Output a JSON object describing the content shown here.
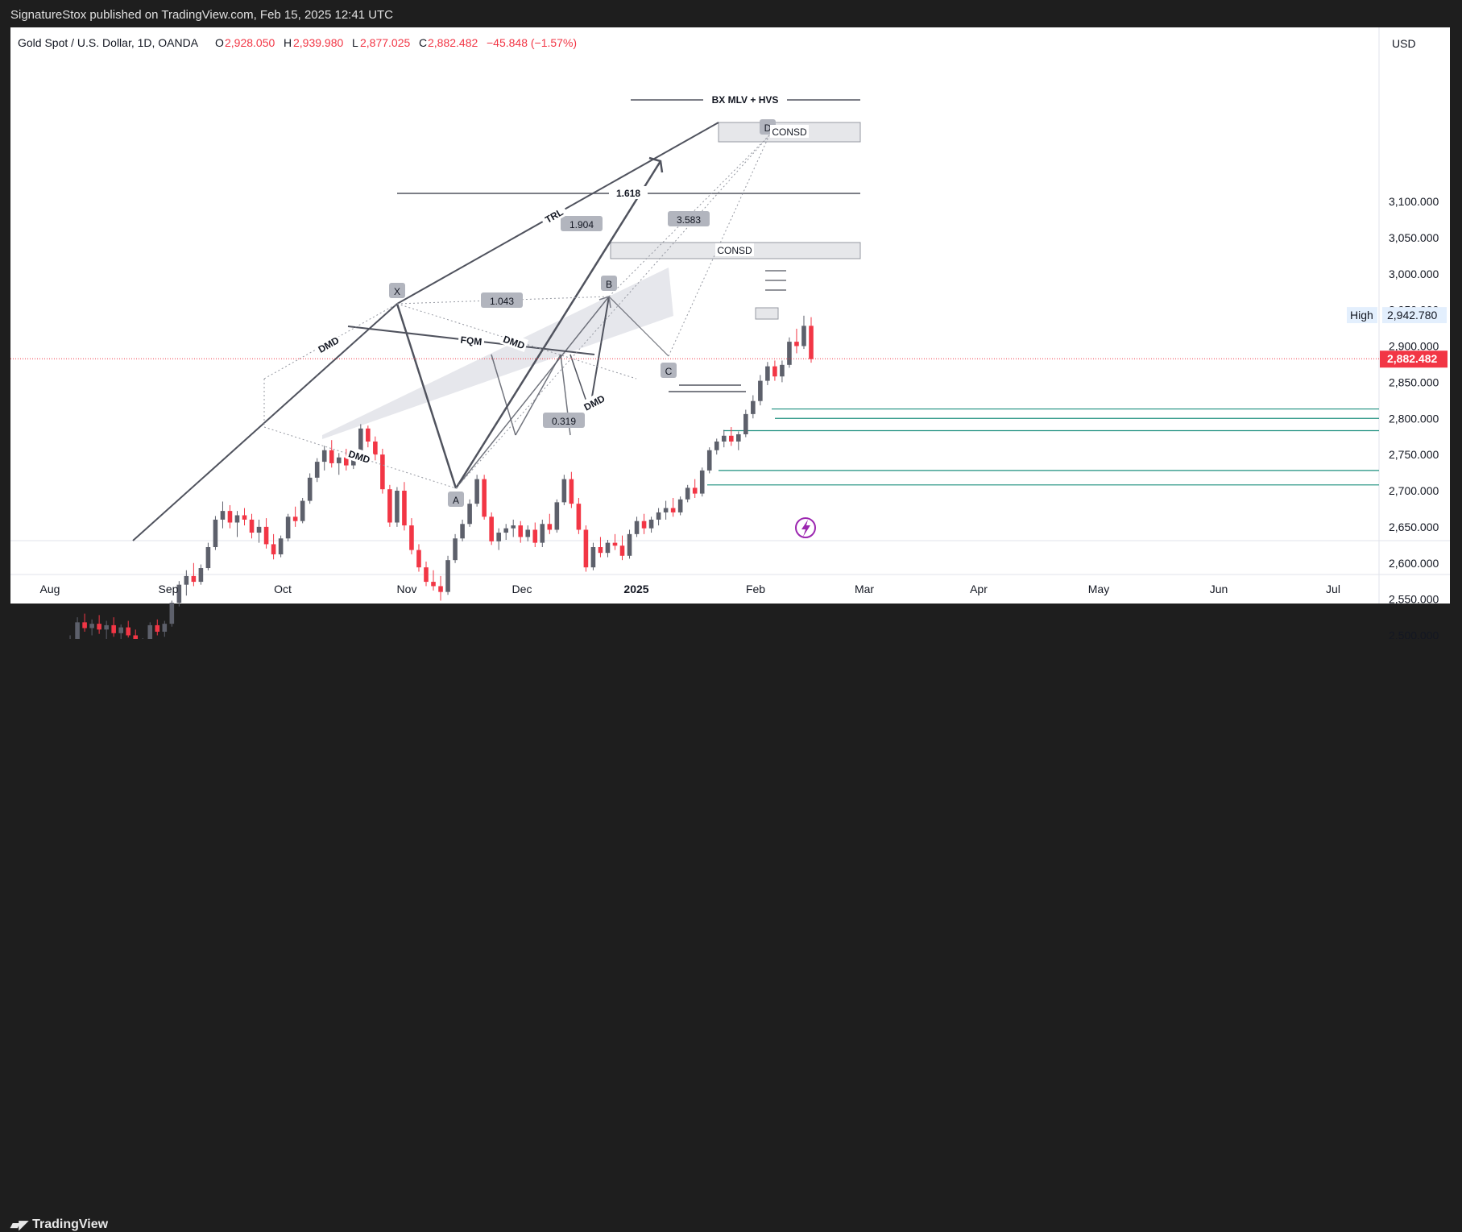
{
  "header": {
    "published": "SignatureStox published on TradingView.com, Feb 15, 2025 12:41 UTC"
  },
  "legend": {
    "symbol": "Gold Spot / U.S. Dollar, 1D, OANDA",
    "o_label": "O",
    "o_value": "2,928.050",
    "h_label": "H",
    "h_value": "2,939.980",
    "l_label": "L",
    "l_value": "2,877.025",
    "c_label": "C",
    "c_value": "2,882.482",
    "change": "−45.848 (−1.57%)"
  },
  "currency": "USD",
  "footer": {
    "brand": "TradingView"
  },
  "colors": {
    "up": "#5d606b",
    "down": "#f23645",
    "level": "#1b8f7e",
    "accent": "#9c27b0",
    "price_line": "#f23645"
  },
  "annotations": {
    "title_line": "BX MLV + HVS",
    "consd_top": "CONSD",
    "consd_mid": "CONSD",
    "fib": "1.618",
    "trl": "TRL",
    "fqm": "FQM",
    "dmd1": "DMD",
    "dmd2": "DMD",
    "dmd3": "DMD",
    "dmd4": "DMD",
    "ratio1": "1.904",
    "ratio2": "3.583",
    "ratio3": "1.043",
    "ratio4": "0.319",
    "pt_x": "X",
    "pt_a": "A",
    "pt_b": "B",
    "pt_c": "C",
    "pt_d": "D"
  },
  "chart_data": {
    "type": "candlestick",
    "title": "Gold Spot / U.S. Dollar, 1D, OANDA",
    "y_ticks": [
      "3,100.000",
      "3,050.000",
      "3,000.000",
      "2,950.000",
      "2,900.000",
      "2,850.000",
      "2,800.000",
      "2,750.000",
      "2,700.000",
      "2,650.000",
      "2,600.000",
      "2,550.000",
      "2,500.000"
    ],
    "x_ticks": [
      "Aug",
      "Sep",
      "Oct",
      "Nov",
      "Dec",
      "2025",
      "Feb",
      "Mar",
      "Apr",
      "May",
      "Jun",
      "Jul"
    ],
    "ylim": [
      2470,
      3130
    ],
    "high_label": "High",
    "high_value": "2,942.780",
    "last_value": "2,882.482",
    "levels": [
      2813,
      2800,
      2783,
      2728,
      2708
    ],
    "candles": [
      [
        2445,
        2460,
        2440,
        2452
      ],
      [
        2452,
        2475,
        2448,
        2470
      ],
      [
        2470,
        2478,
        2455,
        2462
      ],
      [
        2462,
        2500,
        2460,
        2495
      ],
      [
        2495,
        2525,
        2490,
        2518
      ],
      [
        2518,
        2530,
        2505,
        2510
      ],
      [
        2510,
        2522,
        2500,
        2516
      ],
      [
        2516,
        2528,
        2502,
        2508
      ],
      [
        2508,
        2520,
        2495,
        2514
      ],
      [
        2514,
        2525,
        2498,
        2503
      ],
      [
        2503,
        2515,
        2488,
        2511
      ],
      [
        2511,
        2520,
        2497,
        2500
      ],
      [
        2500,
        2508,
        2478,
        2485
      ],
      [
        2485,
        2496,
        2474,
        2492
      ],
      [
        2492,
        2518,
        2488,
        2514
      ],
      [
        2514,
        2522,
        2500,
        2505
      ],
      [
        2505,
        2520,
        2498,
        2516
      ],
      [
        2516,
        2548,
        2512,
        2545
      ],
      [
        2545,
        2575,
        2540,
        2570
      ],
      [
        2570,
        2590,
        2555,
        2582
      ],
      [
        2582,
        2600,
        2568,
        2574
      ],
      [
        2574,
        2598,
        2570,
        2593
      ],
      [
        2593,
        2628,
        2590,
        2622
      ],
      [
        2622,
        2665,
        2618,
        2660
      ],
      [
        2660,
        2685,
        2648,
        2672
      ],
      [
        2672,
        2680,
        2648,
        2656
      ],
      [
        2656,
        2672,
        2636,
        2666
      ],
      [
        2666,
        2676,
        2652,
        2660
      ],
      [
        2660,
        2668,
        2634,
        2642
      ],
      [
        2642,
        2660,
        2628,
        2650
      ],
      [
        2650,
        2662,
        2620,
        2626
      ],
      [
        2626,
        2640,
        2605,
        2612
      ],
      [
        2612,
        2638,
        2608,
        2634
      ],
      [
        2634,
        2668,
        2630,
        2664
      ],
      [
        2664,
        2678,
        2650,
        2658
      ],
      [
        2658,
        2690,
        2655,
        2686
      ],
      [
        2686,
        2724,
        2682,
        2718
      ],
      [
        2718,
        2745,
        2712,
        2740
      ],
      [
        2740,
        2762,
        2728,
        2756
      ],
      [
        2756,
        2770,
        2732,
        2738
      ],
      [
        2738,
        2752,
        2722,
        2746
      ],
      [
        2746,
        2758,
        2728,
        2735
      ],
      [
        2735,
        2758,
        2730,
        2752
      ],
      [
        2752,
        2792,
        2748,
        2786
      ],
      [
        2786,
        2790,
        2760,
        2768
      ],
      [
        2768,
        2775,
        2742,
        2750
      ],
      [
        2750,
        2758,
        2696,
        2702
      ],
      [
        2702,
        2708,
        2650,
        2656
      ],
      [
        2656,
        2705,
        2650,
        2700
      ],
      [
        2700,
        2712,
        2645,
        2652
      ],
      [
        2652,
        2662,
        2612,
        2618
      ],
      [
        2618,
        2626,
        2588,
        2594
      ],
      [
        2594,
        2602,
        2568,
        2574
      ],
      [
        2574,
        2590,
        2562,
        2568
      ],
      [
        2568,
        2582,
        2548,
        2560
      ],
      [
        2560,
        2610,
        2556,
        2604
      ],
      [
        2604,
        2640,
        2600,
        2634
      ],
      [
        2634,
        2660,
        2630,
        2654
      ],
      [
        2654,
        2688,
        2650,
        2682
      ],
      [
        2682,
        2722,
        2678,
        2716
      ],
      [
        2716,
        2722,
        2660,
        2664
      ],
      [
        2664,
        2670,
        2625,
        2630
      ],
      [
        2630,
        2648,
        2618,
        2642
      ],
      [
        2642,
        2654,
        2632,
        2648
      ],
      [
        2648,
        2660,
        2636,
        2652
      ],
      [
        2652,
        2658,
        2628,
        2636
      ],
      [
        2636,
        2652,
        2630,
        2646
      ],
      [
        2646,
        2656,
        2622,
        2628
      ],
      [
        2628,
        2660,
        2622,
        2654
      ],
      [
        2654,
        2668,
        2640,
        2646
      ],
      [
        2646,
        2688,
        2642,
        2684
      ],
      [
        2684,
        2722,
        2680,
        2716
      ],
      [
        2716,
        2726,
        2676,
        2682
      ],
      [
        2682,
        2690,
        2640,
        2646
      ],
      [
        2646,
        2652,
        2588,
        2594
      ],
      [
        2594,
        2628,
        2590,
        2622
      ],
      [
        2622,
        2636,
        2608,
        2614
      ],
      [
        2614,
        2632,
        2608,
        2628
      ],
      [
        2628,
        2640,
        2618,
        2624
      ],
      [
        2624,
        2638,
        2604,
        2610
      ],
      [
        2610,
        2646,
        2606,
        2640
      ],
      [
        2640,
        2664,
        2636,
        2658
      ],
      [
        2658,
        2668,
        2640,
        2648
      ],
      [
        2648,
        2664,
        2642,
        2660
      ],
      [
        2660,
        2676,
        2652,
        2670
      ],
      [
        2670,
        2686,
        2660,
        2676
      ],
      [
        2676,
        2690,
        2664,
        2670
      ],
      [
        2670,
        2692,
        2666,
        2688
      ],
      [
        2688,
        2708,
        2684,
        2704
      ],
      [
        2704,
        2716,
        2690,
        2696
      ],
      [
        2696,
        2732,
        2692,
        2728
      ],
      [
        2728,
        2760,
        2724,
        2756
      ],
      [
        2756,
        2772,
        2750,
        2768
      ],
      [
        2768,
        2784,
        2760,
        2776
      ],
      [
        2776,
        2788,
        2762,
        2768
      ],
      [
        2768,
        2782,
        2756,
        2778
      ],
      [
        2778,
        2812,
        2774,
        2806
      ],
      [
        2806,
        2832,
        2800,
        2824
      ],
      [
        2824,
        2860,
        2818,
        2852
      ],
      [
        2852,
        2878,
        2846,
        2872
      ],
      [
        2872,
        2880,
        2852,
        2858
      ],
      [
        2858,
        2880,
        2850,
        2874
      ],
      [
        2874,
        2912,
        2870,
        2906
      ],
      [
        2906,
        2924,
        2890,
        2900
      ],
      [
        2900,
        2942,
        2896,
        2928
      ],
      [
        2928,
        2940,
        2877,
        2882
      ]
    ]
  }
}
